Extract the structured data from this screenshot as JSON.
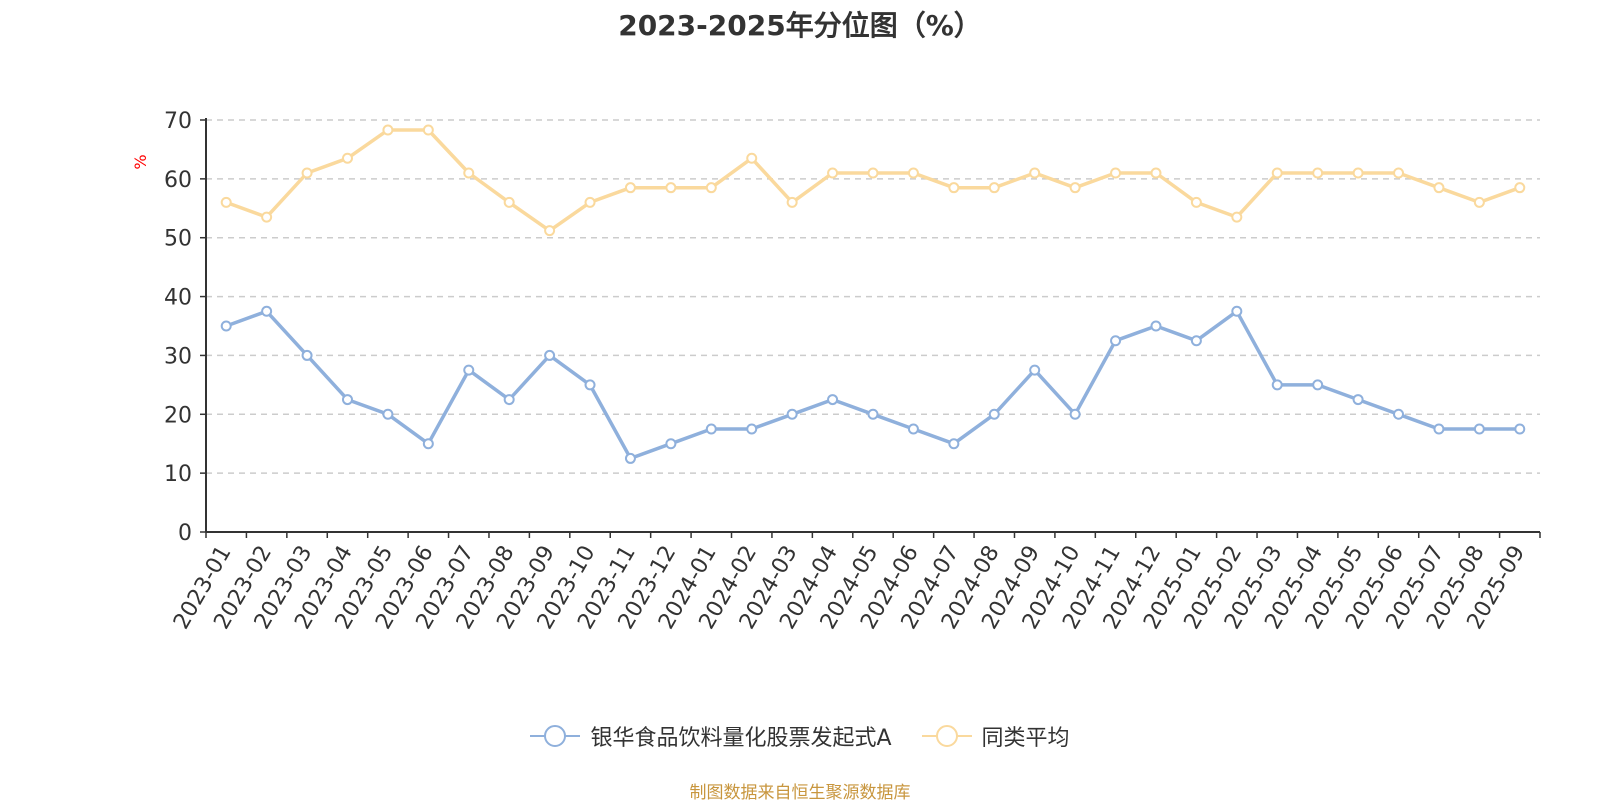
{
  "chart_data": {
    "type": "line",
    "title": "2023-2025年分位图（%）",
    "ylabel": "%",
    "xlabel": "",
    "ylim": [
      0,
      70
    ],
    "yticks": [
      0,
      10,
      20,
      30,
      40,
      50,
      60,
      70
    ],
    "grid": true,
    "legend_position": "bottom-center",
    "categories": [
      "2023-01",
      "2023-02",
      "2023-03",
      "2023-04",
      "2023-05",
      "2023-06",
      "2023-07",
      "2023-08",
      "2023-09",
      "2023-10",
      "2023-11",
      "2023-12",
      "2024-01",
      "2024-02",
      "2024-03",
      "2024-04",
      "2024-05",
      "2024-06",
      "2024-07",
      "2024-08",
      "2024-09",
      "2024-10",
      "2024-11",
      "2024-12",
      "2025-01",
      "2025-02",
      "2025-03",
      "2025-04",
      "2025-05",
      "2025-06",
      "2025-07",
      "2025-08",
      "2025-09"
    ],
    "series": [
      {
        "name": "银华食品饮料量化股票发起式A",
        "color": "#8fb0dc",
        "values": [
          35,
          37.5,
          30,
          22.5,
          20,
          15,
          27.5,
          22.5,
          30,
          25,
          12.5,
          15,
          17.5,
          17.5,
          20,
          22.5,
          20,
          17.5,
          15,
          20,
          27.5,
          20,
          32.5,
          35,
          32.5,
          37.5,
          25,
          25,
          22.5,
          20,
          17.5,
          17.5,
          17.5
        ]
      },
      {
        "name": "同类平均",
        "color": "#fad99d",
        "values": [
          56,
          53.5,
          61,
          63.5,
          68.3,
          68.3,
          61,
          56,
          51.2,
          56,
          58.5,
          58.5,
          58.5,
          63.5,
          56,
          61,
          61,
          61,
          58.5,
          58.5,
          61,
          58.5,
          61,
          61,
          56,
          53.5,
          61,
          61,
          61,
          61,
          58.5,
          56,
          58.5
        ]
      }
    ]
  },
  "source_note": "制图数据来自恒生聚源数据库"
}
